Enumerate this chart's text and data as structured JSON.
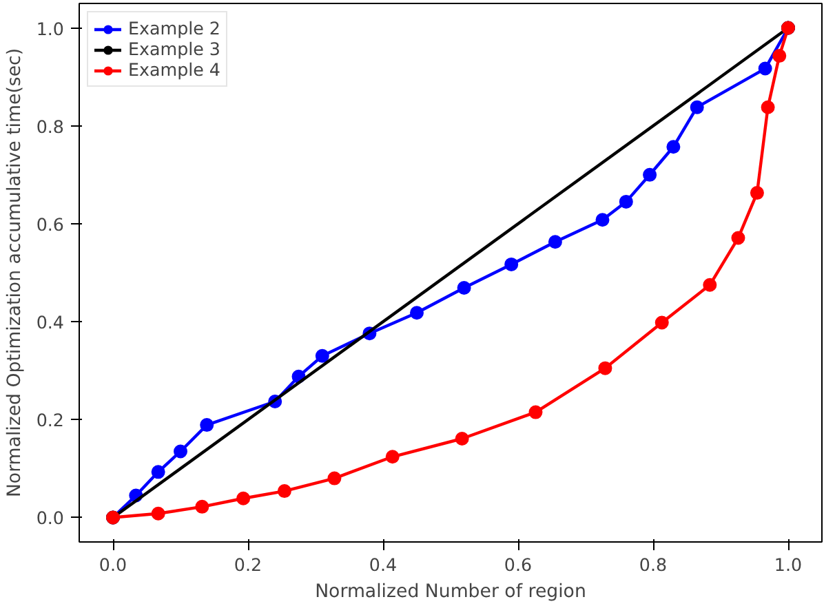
{
  "chart_data": {
    "type": "line",
    "xlabel": "Normalized Number of region",
    "ylabel": "Normalized Optimization accumulative time(sec)",
    "xlim": [
      -0.05,
      1.05
    ],
    "ylim": [
      -0.05,
      1.05
    ],
    "xticks": [
      {
        "value": 0,
        "label": "0.0"
      },
      0.2,
      0.4,
      0.6,
      0.8,
      {
        "value": 1,
        "label": "1.0"
      }
    ],
    "yticks": [
      {
        "value": 0,
        "label": "0.0"
      },
      0.2,
      0.4,
      0.6,
      0.8,
      {
        "value": 1,
        "label": "1.0"
      }
    ],
    "grid": false,
    "legend": "top left",
    "marker": "circle",
    "line_style": "solid",
    "series": [
      {
        "name": "Example 2",
        "color": "#0000ff",
        "x": [
          0,
          0.034,
          0.067,
          0.1,
          0.139,
          0.24,
          0.275,
          0.31,
          0.38,
          0.45,
          0.52,
          0.59,
          0.655,
          0.725,
          0.76,
          0.795,
          0.83,
          0.865,
          0.966,
          1
        ],
        "values": [
          0,
          0.045,
          0.093,
          0.135,
          0.189,
          0.237,
          0.288,
          0.33,
          0.376,
          0.418,
          0.469,
          0.517,
          0.563,
          0.608,
          0.645,
          0.7,
          0.757,
          0.838,
          0.917,
          1
        ]
      },
      {
        "name": "Example 3",
        "color": "#000000",
        "x": [
          0,
          1
        ],
        "values": [
          0,
          1
        ]
      },
      {
        "name": "Example 4",
        "color": "#ff0000",
        "x": [
          0,
          0.067,
          0.132,
          0.193,
          0.254,
          0.328,
          0.414,
          0.517,
          0.626,
          0.729,
          0.813,
          0.884,
          0.926,
          0.954,
          0.97,
          0.987,
          1
        ],
        "values": [
          0,
          0.008,
          0.022,
          0.039,
          0.054,
          0.08,
          0.124,
          0.161,
          0.215,
          0.305,
          0.398,
          0.475,
          0.571,
          0.663,
          0.838,
          0.943,
          1
        ]
      }
    ]
  }
}
